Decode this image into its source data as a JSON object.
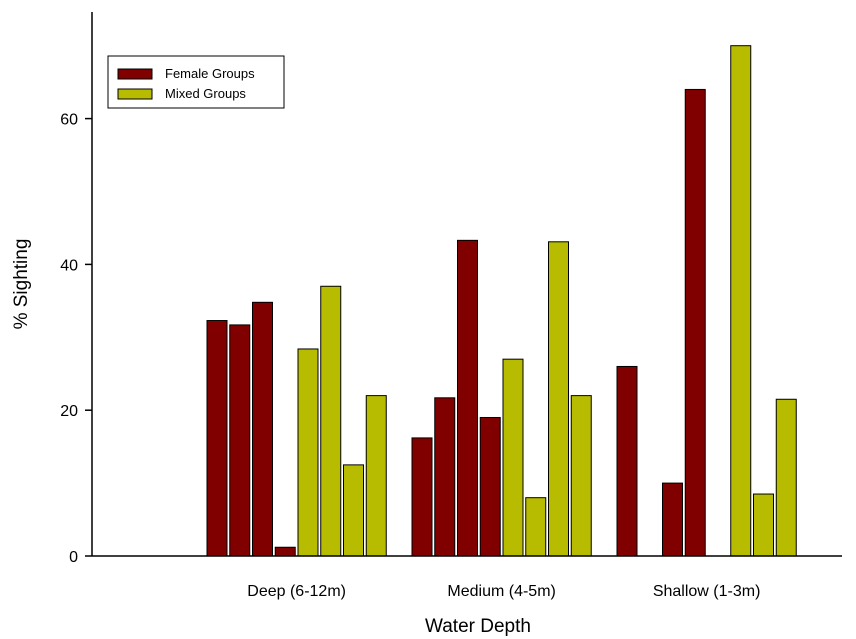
{
  "chart_data": {
    "type": "bar",
    "title": "",
    "xlabel": "Water Depth",
    "ylabel": "% Sighting",
    "ylim": [
      0,
      75
    ],
    "yticks": [
      0,
      20,
      40,
      60
    ],
    "grid": false,
    "legend_position": "top-left",
    "categories": [
      "Deep (6-12m)",
      "Medium (4-5m)",
      "Shallow (1-3m)"
    ],
    "series": [
      {
        "name": "Female Groups",
        "color": "#800000",
        "values": [
          [
            32.3,
            31.7,
            34.8,
            1.2
          ],
          [
            16.2,
            21.7,
            43.3,
            19.0
          ],
          [
            26.0,
            0,
            10.0,
            64.0
          ]
        ]
      },
      {
        "name": "Mixed Groups",
        "color": "#b8bc00",
        "values": [
          [
            28.4,
            37.0,
            12.5,
            22.0
          ],
          [
            27.0,
            8.0,
            43.1,
            22.0
          ],
          [
            0,
            70.0,
            8.5,
            21.5
          ]
        ]
      }
    ]
  }
}
